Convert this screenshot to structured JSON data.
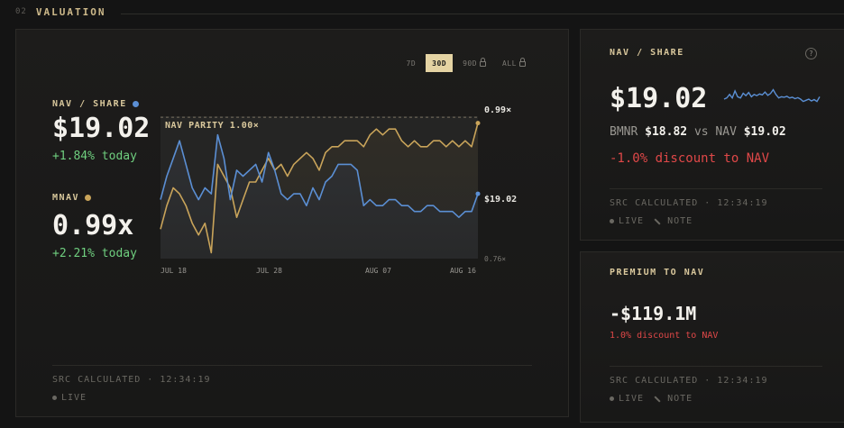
{
  "section": {
    "number": "02",
    "title": "VALUATION"
  },
  "ranges": [
    {
      "label": "7D",
      "active": false,
      "locked": false
    },
    {
      "label": "30D",
      "active": true,
      "locked": false
    },
    {
      "label": "90D",
      "active": false,
      "locked": true
    },
    {
      "label": "ALL",
      "active": false,
      "locked": true
    }
  ],
  "main": {
    "nav_label": "NAV / SHARE",
    "nav_value": "$19.02",
    "nav_change": "+1.84% today",
    "mnav_label": "MNAV",
    "mnav_value": "0.99x",
    "mnav_change": "+2.21% today",
    "src": "SRC CALCULATED · 12:34:19",
    "live": "LIVE"
  },
  "nav_card": {
    "title": "NAV / SHARE",
    "help": "?",
    "value": "$19.02",
    "ticker": "BMNR",
    "ticker_price": "$18.82",
    "vs": "vs NAV",
    "nav_price": "$19.02",
    "discount": "-1.0% discount to NAV",
    "src": "SRC CALCULATED · 12:34:19",
    "live": "LIVE",
    "note": "NOTE"
  },
  "premium_card": {
    "title": "PREMIUM TO NAV",
    "value": "-$119.1M",
    "discount": "1.0% discount to NAV",
    "src": "SRC CALCULATED · 12:34:19",
    "live": "LIVE",
    "note": "NOTE"
  },
  "colors": {
    "nav_series": "#5b8fd4",
    "mnav_series": "#c9a45a",
    "positive": "#6fcf7f",
    "negative": "#e04848",
    "accent": "#e4d3a3"
  },
  "chart_data": {
    "type": "line",
    "parity_label": "NAV PARITY 1.00×",
    "end_label_mnav": "0.99×",
    "end_label_nav": "$19.02",
    "y_bottom_label": "0.76×",
    "x_ticks": [
      "JUL 18",
      "JUL 28",
      "AUG 07",
      "AUG 16"
    ],
    "series": [
      {
        "name": "MNAV",
        "values": [
          0.81,
          0.85,
          0.88,
          0.87,
          0.85,
          0.82,
          0.8,
          0.82,
          0.77,
          0.92,
          0.9,
          0.88,
          0.83,
          0.86,
          0.89,
          0.89,
          0.91,
          0.93,
          0.91,
          0.92,
          0.9,
          0.92,
          0.93,
          0.94,
          0.93,
          0.91,
          0.94,
          0.95,
          0.95,
          0.96,
          0.96,
          0.96,
          0.95,
          0.97,
          0.98,
          0.97,
          0.98,
          0.98,
          0.96,
          0.95,
          0.96,
          0.95,
          0.95,
          0.96,
          0.96,
          0.95,
          0.96,
          0.95,
          0.96,
          0.95,
          0.99
        ]
      },
      {
        "name": "NAV / SHARE",
        "values": [
          0.86,
          0.9,
          0.93,
          0.96,
          0.92,
          0.88,
          0.86,
          0.88,
          0.87,
          0.97,
          0.93,
          0.86,
          0.91,
          0.9,
          0.91,
          0.92,
          0.89,
          0.94,
          0.91,
          0.87,
          0.86,
          0.87,
          0.87,
          0.85,
          0.88,
          0.86,
          0.89,
          0.9,
          0.92,
          0.92,
          0.92,
          0.91,
          0.85,
          0.86,
          0.85,
          0.85,
          0.86,
          0.86,
          0.85,
          0.85,
          0.84,
          0.84,
          0.85,
          0.85,
          0.84,
          0.84,
          0.84,
          0.83,
          0.84,
          0.84,
          0.87
        ]
      }
    ],
    "ylim": [
      0.76,
      1.02
    ]
  },
  "sparkline": {
    "values": [
      0.5,
      0.55,
      0.7,
      0.55,
      0.85,
      0.6,
      0.55,
      0.75,
      0.65,
      0.78,
      0.6,
      0.7,
      0.65,
      0.72,
      0.68,
      0.8,
      0.66,
      0.74,
      0.9,
      0.7,
      0.55,
      0.6,
      0.58,
      0.62,
      0.55,
      0.58,
      0.52,
      0.56,
      0.5,
      0.4,
      0.45,
      0.5,
      0.42,
      0.48,
      0.4,
      0.6
    ]
  }
}
